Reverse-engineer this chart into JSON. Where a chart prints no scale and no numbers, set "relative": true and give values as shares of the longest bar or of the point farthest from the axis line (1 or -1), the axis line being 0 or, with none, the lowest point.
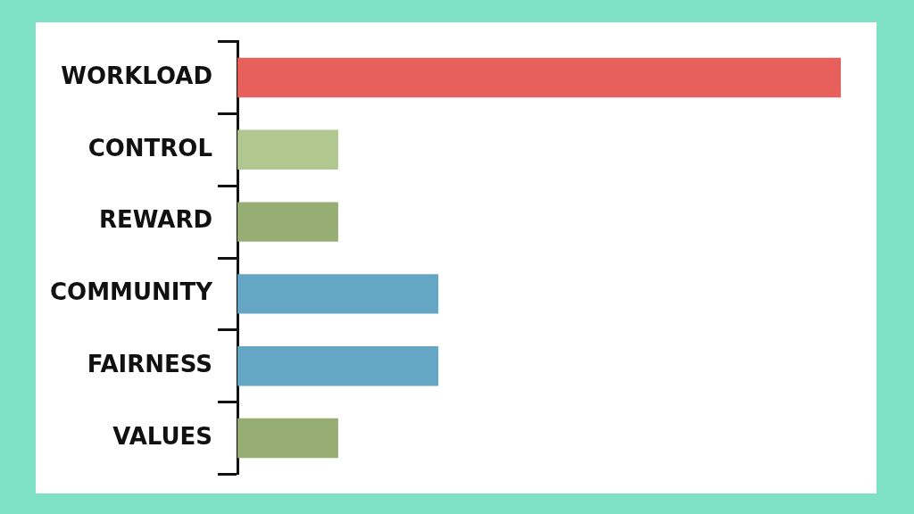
{
  "chart_data": {
    "type": "bar",
    "orientation": "horizontal",
    "relative": true,
    "categories": [
      "WORKLOAD",
      "CONTROL",
      "REWARD",
      "COMMUNITY",
      "FAIRNESS",
      "VALUES"
    ],
    "values": [
      1,
      0.167,
      0.167,
      0.333,
      0.333,
      0.167
    ],
    "colors": [
      "#e8605c",
      "#b0c890",
      "#96ae74",
      "#64a6c4",
      "#64a6c4",
      "#96ae74"
    ]
  }
}
